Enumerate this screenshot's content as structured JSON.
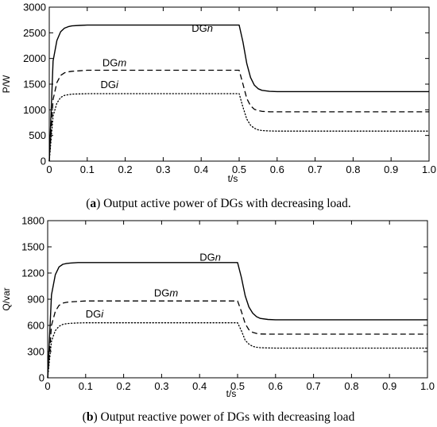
{
  "chart_data": [
    {
      "type": "line",
      "title": "",
      "caption_tag": "a",
      "caption_text": "Output active power of DGs with decreasing load.",
      "xlabel": "t/s",
      "ylabel": "P/W",
      "xlim": [
        0,
        1.0
      ],
      "ylim": [
        0,
        3000
      ],
      "xticks": [
        "0",
        "0.1",
        "0.2",
        "0.3",
        "0.4",
        "0.5",
        "0.6",
        "0.7",
        "0.8",
        "0.9",
        "1.0"
      ],
      "yticks": [
        "0",
        "500",
        "1000",
        "1500",
        "2000",
        "2500",
        "3000"
      ],
      "grid": false,
      "series": [
        {
          "name": "DGn",
          "name_base": "DG",
          "name_var": "n",
          "style": "solid",
          "label_at": [
            0.375,
            2520
          ],
          "x": [
            0,
            0.01,
            0.02,
            0.03,
            0.04,
            0.05,
            0.06,
            0.08,
            0.1,
            0.2,
            0.3,
            0.4,
            0.49,
            0.5,
            0.51,
            0.52,
            0.53,
            0.54,
            0.55,
            0.56,
            0.58,
            0.6,
            0.7,
            0.8,
            0.9,
            1.0
          ],
          "values": [
            0,
            1950,
            2350,
            2520,
            2590,
            2620,
            2635,
            2645,
            2650,
            2650,
            2650,
            2650,
            2650,
            2650,
            2320,
            1900,
            1630,
            1480,
            1410,
            1380,
            1360,
            1355,
            1355,
            1355,
            1355,
            1355
          ]
        },
        {
          "name": "DGm",
          "name_base": "DG",
          "name_var": "m",
          "style": "dashed",
          "label_at": [
            0.14,
            1850
          ],
          "x": [
            0,
            0.01,
            0.02,
            0.03,
            0.04,
            0.05,
            0.06,
            0.08,
            0.1,
            0.2,
            0.3,
            0.4,
            0.49,
            0.5,
            0.51,
            0.52,
            0.53,
            0.54,
            0.55,
            0.56,
            0.58,
            0.6,
            0.7,
            0.8,
            0.9,
            1.0
          ],
          "values": [
            0,
            1200,
            1530,
            1670,
            1720,
            1740,
            1750,
            1760,
            1770,
            1770,
            1770,
            1770,
            1770,
            1770,
            1500,
            1220,
            1080,
            1010,
            985,
            970,
            962,
            960,
            960,
            960,
            960,
            960
          ]
        },
        {
          "name": "DGi",
          "name_base": "DG",
          "name_var": "i",
          "style": "dotted",
          "label_at": [
            0.135,
            1420
          ],
          "x": [
            0,
            0.01,
            0.02,
            0.03,
            0.04,
            0.05,
            0.06,
            0.08,
            0.1,
            0.2,
            0.3,
            0.4,
            0.49,
            0.5,
            0.51,
            0.52,
            0.53,
            0.54,
            0.55,
            0.56,
            0.58,
            0.6,
            0.7,
            0.8,
            0.9,
            1.0
          ],
          "values": [
            0,
            880,
            1130,
            1240,
            1280,
            1295,
            1305,
            1310,
            1315,
            1315,
            1315,
            1315,
            1315,
            1315,
            1050,
            820,
            700,
            640,
            610,
            595,
            588,
            585,
            585,
            585,
            585,
            585
          ]
        }
      ]
    },
    {
      "type": "line",
      "title": "",
      "caption_tag": "b",
      "caption_text": "Output reactive power of DGs with decreasing load",
      "xlabel": "t/s",
      "ylabel": "Q/var",
      "xlim": [
        0,
        1.0
      ],
      "ylim": [
        0,
        1800
      ],
      "xticks": [
        "0",
        "0.1",
        "0.2",
        "0.3",
        "0.4",
        "0.5",
        "0.6",
        "0.7",
        "0.8",
        "0.9",
        "1.0"
      ],
      "yticks": [
        "0",
        "300",
        "600",
        "900",
        "1200",
        "1500",
        "1800"
      ],
      "grid": false,
      "series": [
        {
          "name": "DGn",
          "name_base": "DG",
          "name_var": "n",
          "style": "solid",
          "label_at": [
            0.4,
            1340
          ],
          "x": [
            0,
            0.01,
            0.02,
            0.03,
            0.04,
            0.05,
            0.06,
            0.08,
            0.1,
            0.2,
            0.3,
            0.4,
            0.49,
            0.5,
            0.51,
            0.52,
            0.53,
            0.54,
            0.55,
            0.56,
            0.58,
            0.6,
            0.7,
            0.8,
            0.9,
            1.0
          ],
          "values": [
            0,
            950,
            1180,
            1270,
            1300,
            1310,
            1315,
            1320,
            1320,
            1320,
            1320,
            1320,
            1320,
            1320,
            1150,
            940,
            810,
            740,
            700,
            680,
            668,
            665,
            665,
            665,
            665,
            665
          ]
        },
        {
          "name": "DGm",
          "name_base": "DG",
          "name_var": "m",
          "style": "dashed",
          "label_at": [
            0.28,
            930
          ],
          "x": [
            0,
            0.01,
            0.02,
            0.03,
            0.04,
            0.05,
            0.06,
            0.08,
            0.1,
            0.2,
            0.3,
            0.4,
            0.49,
            0.5,
            0.51,
            0.52,
            0.53,
            0.54,
            0.55,
            0.56,
            0.58,
            0.6,
            0.7,
            0.8,
            0.9,
            1.0
          ],
          "values": [
            0,
            600,
            760,
            830,
            855,
            865,
            870,
            875,
            880,
            880,
            880,
            880,
            880,
            880,
            760,
            620,
            550,
            520,
            508,
            502,
            500,
            500,
            500,
            500,
            500,
            500
          ]
        },
        {
          "name": "DGi",
          "name_base": "DG",
          "name_var": "i",
          "style": "dotted",
          "label_at": [
            0.1,
            690
          ],
          "x": [
            0,
            0.01,
            0.02,
            0.03,
            0.04,
            0.05,
            0.06,
            0.08,
            0.1,
            0.2,
            0.3,
            0.4,
            0.49,
            0.5,
            0.51,
            0.52,
            0.53,
            0.54,
            0.55,
            0.56,
            0.58,
            0.6,
            0.7,
            0.8,
            0.9,
            1.0
          ],
          "values": [
            0,
            420,
            540,
            590,
            612,
            620,
            625,
            628,
            630,
            630,
            630,
            630,
            630,
            630,
            540,
            430,
            385,
            360,
            350,
            345,
            342,
            340,
            340,
            340,
            340,
            340
          ]
        }
      ]
    }
  ]
}
